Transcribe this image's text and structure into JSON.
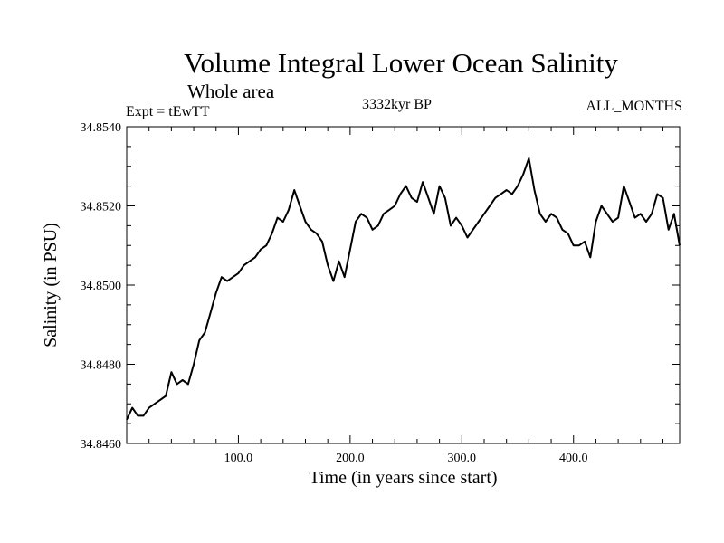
{
  "chart_data": {
    "type": "line",
    "title": "Volume Integral Lower Ocean Salinity",
    "subtitle": "Whole area",
    "left_label": "Expt = tEwTT",
    "center_label": "3332kyr BP",
    "right_label": "ALL_MONTHS",
    "xlabel": "Time (in years since start)",
    "ylabel": "Salinity (in PSU)",
    "xlim": [
      0,
      495
    ],
    "ylim": [
      34.846,
      34.854
    ],
    "xticks": [
      100,
      200,
      300,
      400
    ],
    "xtick_labels": [
      "100.0",
      "200.0",
      "300.0",
      "400.0"
    ],
    "yticks": [
      34.846,
      34.848,
      34.85,
      34.852,
      34.854
    ],
    "ytick_labels": [
      "34.8460",
      "34.8480",
      "34.8500",
      "34.8520",
      "34.8540"
    ],
    "series": [
      {
        "name": "salinity",
        "x": [
          0,
          5,
          10,
          15,
          20,
          25,
          30,
          35,
          40,
          45,
          50,
          55,
          60,
          65,
          70,
          75,
          80,
          85,
          90,
          95,
          100,
          105,
          110,
          115,
          120,
          125,
          130,
          135,
          140,
          145,
          150,
          155,
          160,
          165,
          170,
          175,
          180,
          185,
          190,
          195,
          200,
          205,
          210,
          215,
          220,
          225,
          230,
          235,
          240,
          245,
          250,
          255,
          260,
          265,
          270,
          275,
          280,
          285,
          290,
          295,
          300,
          305,
          310,
          315,
          320,
          325,
          330,
          335,
          340,
          345,
          350,
          355,
          360,
          365,
          370,
          375,
          380,
          385,
          390,
          395,
          400,
          405,
          410,
          415,
          420,
          425,
          430,
          435,
          440,
          445,
          450,
          455,
          460,
          465,
          470,
          475,
          480,
          485,
          490,
          495
        ],
        "values": [
          34.8466,
          34.8469,
          34.8467,
          34.8467,
          34.8469,
          34.847,
          34.8471,
          34.8472,
          34.8478,
          34.8475,
          34.8476,
          34.8475,
          34.848,
          34.8486,
          34.8488,
          34.8493,
          34.8498,
          34.8502,
          34.8501,
          34.8502,
          34.8503,
          34.8505,
          34.8506,
          34.8507,
          34.8509,
          34.851,
          34.8513,
          34.8517,
          34.8516,
          34.8519,
          34.8524,
          34.852,
          34.8516,
          34.8514,
          34.8513,
          34.8511,
          34.8505,
          34.8501,
          34.8506,
          34.8502,
          34.8509,
          34.8516,
          34.8518,
          34.8517,
          34.8514,
          34.8515,
          34.8518,
          34.8519,
          34.852,
          34.8523,
          34.8525,
          34.8522,
          34.8521,
          34.8526,
          34.8522,
          34.8518,
          34.8525,
          34.8522,
          34.8515,
          34.8517,
          34.8515,
          34.8512,
          34.8514,
          34.8516,
          34.8518,
          34.852,
          34.8522,
          34.8523,
          34.8524,
          34.8523,
          34.8525,
          34.8528,
          34.8532,
          34.8524,
          34.8518,
          34.8516,
          34.8518,
          34.8517,
          34.8514,
          34.8513,
          34.851,
          34.851,
          34.8511,
          34.8507,
          34.8516,
          34.852,
          34.8518,
          34.8516,
          34.8517,
          34.8525,
          34.8521,
          34.8517,
          34.8518,
          34.8516,
          34.8518,
          34.8523,
          34.8522,
          34.8514,
          34.8518,
          34.851
        ]
      }
    ]
  }
}
